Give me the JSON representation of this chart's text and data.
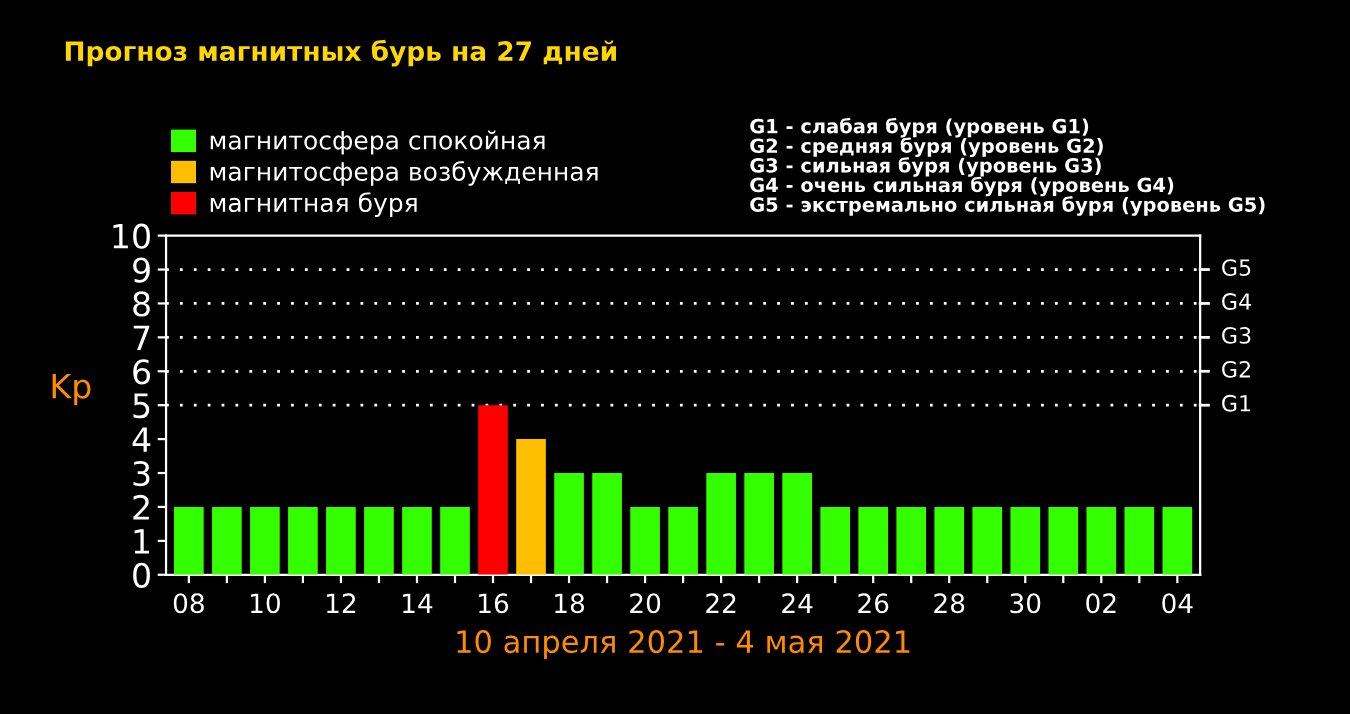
{
  "chart_data": {
    "type": "bar",
    "title": "Прогноз магнитных бурь на 27 дней",
    "xlabel": "10 апреля 2021 - 4 мая 2021",
    "ylabel": "Kp",
    "categories": [
      "08",
      null,
      "10",
      null,
      "12",
      null,
      "14",
      null,
      "16",
      null,
      "18",
      null,
      "20",
      null,
      "22",
      null,
      "24",
      null,
      "26",
      null,
      "28",
      null,
      "30",
      null,
      "02",
      null,
      "04"
    ],
    "series": [
      {
        "name": "магнитосфера спокойная",
        "color": "#33ff00",
        "values": [
          2,
          2,
          2,
          2,
          2,
          2,
          2,
          2,
          null,
          null,
          3,
          3,
          2,
          2,
          3,
          3,
          3,
          2,
          2,
          2,
          2,
          2,
          2,
          2,
          2,
          2,
          2
        ]
      },
      {
        "name": "магнитосфера возбужденная",
        "color": "#ffbf00",
        "values": [
          null,
          null,
          null,
          null,
          null,
          null,
          null,
          null,
          null,
          4,
          null,
          null,
          null,
          null,
          null,
          null,
          null,
          null,
          null,
          null,
          null,
          null,
          null,
          null,
          null,
          null,
          null
        ]
      },
      {
        "name": "магнитная буря",
        "color": "#ff0000",
        "values": [
          null,
          null,
          null,
          null,
          null,
          null,
          null,
          null,
          5,
          null,
          null,
          null,
          null,
          null,
          null,
          null,
          null,
          null,
          null,
          null,
          null,
          null,
          null,
          null,
          null,
          null,
          null
        ]
      }
    ],
    "ylim": [
      0,
      10
    ],
    "yticks": [
      0,
      1,
      2,
      3,
      4,
      5,
      6,
      7,
      8,
      9,
      10
    ],
    "ref_lines": [
      {
        "axis": "y",
        "value": 5,
        "label": "G1",
        "color": "#ffffff",
        "line_style": "dotted"
      },
      {
        "axis": "y",
        "value": 6,
        "label": "G2",
        "color": "#ffffff",
        "line_style": "dotted"
      },
      {
        "axis": "y",
        "value": 7,
        "label": "G3",
        "color": "#ffffff",
        "line_style": "dotted"
      },
      {
        "axis": "y",
        "value": 8,
        "label": "G4",
        "color": "#ffffff",
        "line_style": "dotted"
      },
      {
        "axis": "y",
        "value": 9,
        "label": "G5",
        "color": "#ffffff",
        "line_style": "dotted"
      }
    ],
    "legend": "top left",
    "annotations": [
      "G1 - слабая буря (уровень G1)\nG2 - средняя буря (уровень G2)\nG3 - сильная буря (уровень G3)\nG4 - очень сильная буря (уровень G4)\nG5 - экстремально сильная буря (уровень G5)"
    ]
  }
}
